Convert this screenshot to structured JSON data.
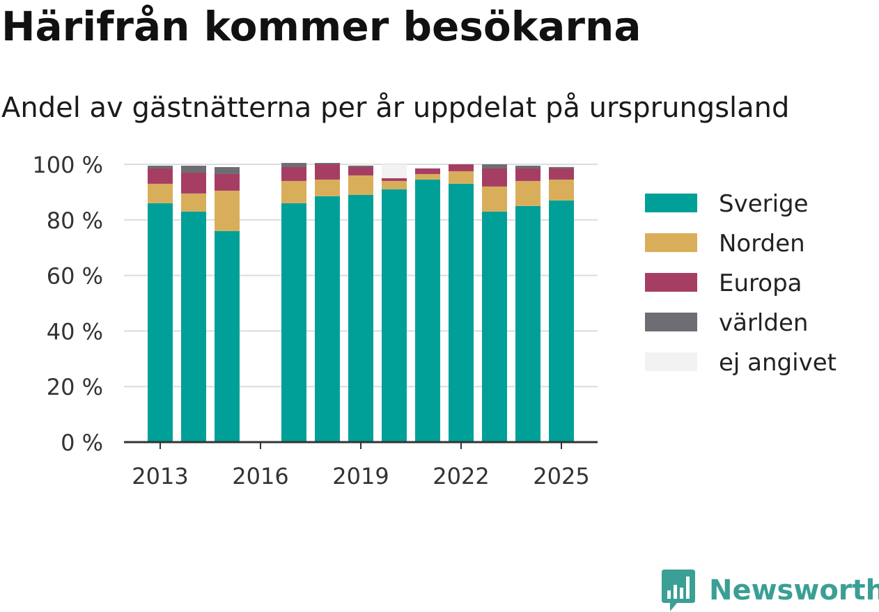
{
  "title": "Härifrån kommer besökarna",
  "subtitle": "Andel av gästnätterna per år uppdelat på ursprungsland",
  "brand": "Newsworthy",
  "chart_data": {
    "type": "bar",
    "stacked": true,
    "x": [
      2013,
      2014,
      2015,
      2016,
      2017,
      2018,
      2019,
      2020,
      2021,
      2022,
      2023,
      2024,
      2025
    ],
    "series": [
      {
        "name": "Sverige",
        "color": "#00a098",
        "values": [
          86,
          83,
          76,
          null,
          86,
          88.5,
          89,
          91,
          94.5,
          93,
          83,
          85,
          87
        ]
      },
      {
        "name": "Norden",
        "color": "#d9ae5b",
        "values": [
          7,
          6.5,
          14.5,
          null,
          8,
          6,
          7,
          3,
          2,
          4.5,
          9,
          9,
          7.5
        ]
      },
      {
        "name": "Europa",
        "color": "#a63e64",
        "values": [
          5.5,
          7.5,
          6,
          null,
          5,
          5.5,
          3,
          1,
          2,
          2.5,
          6.5,
          4.5,
          4
        ]
      },
      {
        "name": "världen",
        "color": "#6d6d73",
        "values": [
          1,
          2.5,
          2.5,
          null,
          1.5,
          0.5,
          0.5,
          0,
          0,
          0,
          1.5,
          1,
          0.5
        ]
      },
      {
        "name": "ej angivet",
        "color": "#f2f2f2",
        "values": [
          0,
          0,
          0,
          null,
          0,
          0,
          0.5,
          5,
          0.5,
          0,
          0,
          0,
          0.5
        ]
      }
    ],
    "yticks": [
      "0 %",
      "20 %",
      "40 %",
      "60 %",
      "80 %",
      "100 %"
    ],
    "ytick_values": [
      0,
      20,
      40,
      60,
      80,
      100
    ],
    "xtick_labels": [
      "2013",
      "2016",
      "2019",
      "2022",
      "2025"
    ],
    "ylim": [
      0,
      100
    ],
    "xlabel": "",
    "ylabel": "",
    "grid": true,
    "legend": "right"
  }
}
